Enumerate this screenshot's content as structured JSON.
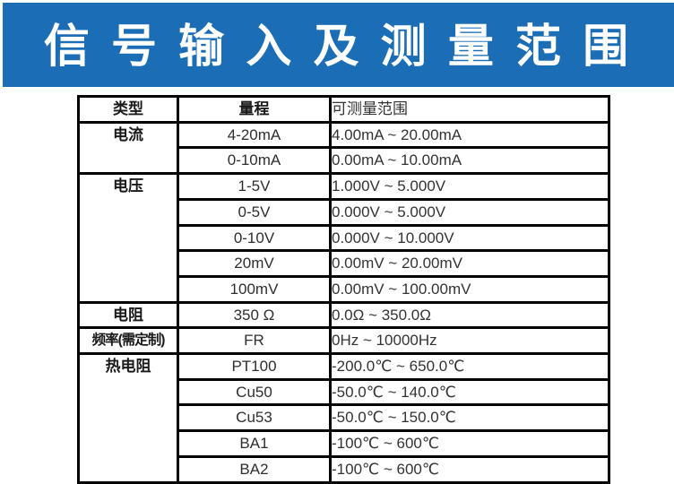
{
  "banner": {
    "title": "信 号 输 入 及 测 量 范 围",
    "background_color": "#1b6db6",
    "text_color": "#ffffff"
  },
  "table": {
    "columns": [
      "类型",
      "量程",
      "可测量范围"
    ],
    "groups": [
      {
        "type": "电流",
        "rows": [
          {
            "range": "4-20mA",
            "span": "4.00mA ~ 20.00mA"
          },
          {
            "range": "0-10mA",
            "span": "0.00mA ~ 10.00mA"
          }
        ]
      },
      {
        "type": "电压",
        "rows": [
          {
            "range": "1-5V",
            "span": "1.000V ~ 5.000V"
          },
          {
            "range": "0-5V",
            "span": "0.000V ~ 5.000V"
          },
          {
            "range": "0-10V",
            "span": "0.000V ~ 10.000V"
          },
          {
            "range": "20mV",
            "span": "0.00mV ~ 20.00mV"
          },
          {
            "range": "100mV",
            "span": "0.00mV ~ 100.00mV"
          }
        ]
      },
      {
        "type": "电阻",
        "rows": [
          {
            "range": "350 Ω",
            "span": "0.0Ω ~ 350.0Ω"
          }
        ]
      },
      {
        "type": "频率(需定制)",
        "rows": [
          {
            "range": "FR",
            "span": "0Hz ~ 10000Hz"
          }
        ]
      },
      {
        "type": "热电阻",
        "rows": [
          {
            "range": "PT100",
            "span": "-200.0℃ ~ 650.0℃"
          },
          {
            "range": "Cu50",
            "span": "-50.0℃ ~ 140.0℃"
          },
          {
            "range": "Cu53",
            "span": "-50.0℃ ~ 150.0℃"
          },
          {
            "range": "BA1",
            "span": "-100℃ ~ 600℃"
          },
          {
            "range": "BA2",
            "span": "-100℃ ~ 600℃"
          }
        ]
      }
    ]
  }
}
